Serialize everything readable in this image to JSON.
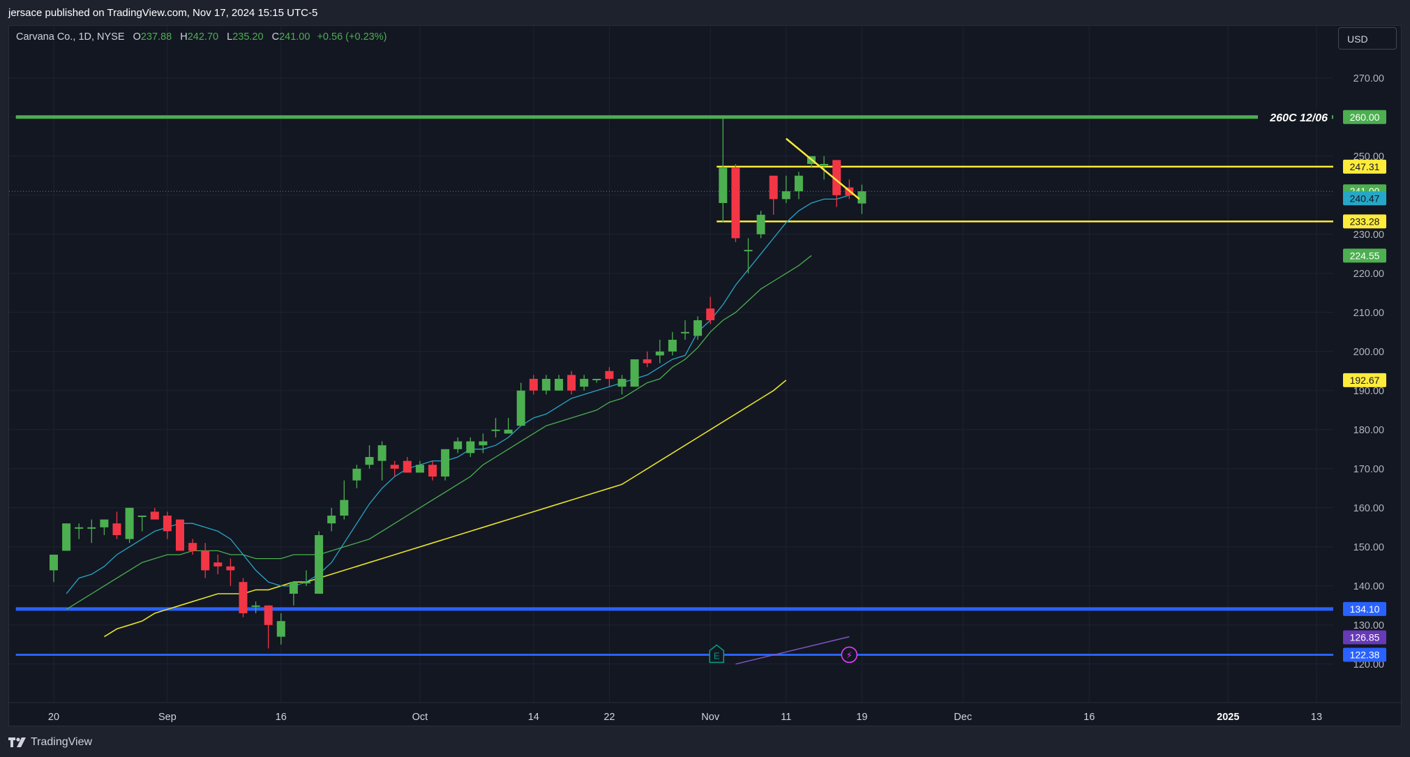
{
  "header": {
    "publish_text": "jersace published on TradingView.com, Nov 17, 2024 15:15 UTC-5"
  },
  "legend": {
    "symbol": "Carvana Co., 1D, NYSE",
    "open_label": "O",
    "open": "237.88",
    "high_label": "H",
    "high": "242.70",
    "low_label": "L",
    "low": "235.20",
    "close_label": "C",
    "close": "241.00",
    "change": "+0.56 (+0.23%)"
  },
  "currency_button": "USD",
  "footer": {
    "brand": "TradingView"
  },
  "colors": {
    "background": "#131722",
    "up": "#4caf50",
    "down": "#f23645",
    "ema_fast": "#26a7c7",
    "ema_mid": "#4caf50",
    "ema_slow": "#e8e32b",
    "hline_green": "#4caf50",
    "hline_yellow": "#ffeb3b",
    "hline_blue": "#2962ff",
    "trendline": "#ffeb3b",
    "purple_line": "#7e57c2"
  },
  "chart_data": {
    "type": "candlestick",
    "ylim": [
      118,
      278
    ],
    "y_ticks": [
      "120.00",
      "130.00",
      "140.00",
      "150.00",
      "160.00",
      "170.00",
      "180.00",
      "190.00",
      "200.00",
      "210.00",
      "220.00",
      "230.00",
      "240.00",
      "250.00",
      "260.00",
      "270.00"
    ],
    "x_ticks": [
      {
        "label": "20",
        "bar": 0
      },
      {
        "label": "Sep",
        "bar": 9
      },
      {
        "label": "16",
        "bar": 18
      },
      {
        "label": "Oct",
        "bar": 29
      },
      {
        "label": "14",
        "bar": 38
      },
      {
        "label": "22",
        "bar": 44
      },
      {
        "label": "Nov",
        "bar": 52
      },
      {
        "label": "11",
        "bar": 58
      },
      {
        "label": "19",
        "bar": 64
      },
      {
        "label": "Dec",
        "bar": 72
      },
      {
        "label": "16",
        "bar": 82
      },
      {
        "label": "2025",
        "bar": 93,
        "bold": true
      },
      {
        "label": "13",
        "bar": 100
      }
    ],
    "candles": [
      {
        "o": 144,
        "h": 148,
        "l": 141,
        "c": 148
      },
      {
        "o": 149,
        "h": 156,
        "l": 149,
        "c": 156
      },
      {
        "o": 155,
        "h": 156,
        "l": 152,
        "c": 155
      },
      {
        "o": 155,
        "h": 157,
        "l": 151,
        "c": 155
      },
      {
        "o": 155,
        "h": 157,
        "l": 153,
        "c": 157
      },
      {
        "o": 156,
        "h": 159,
        "l": 152,
        "c": 153
      },
      {
        "o": 152,
        "h": 160,
        "l": 151,
        "c": 160
      },
      {
        "o": 158,
        "h": 158,
        "l": 154,
        "c": 158
      },
      {
        "o": 159,
        "h": 160,
        "l": 157,
        "c": 157
      },
      {
        "o": 158,
        "h": 159,
        "l": 152,
        "c": 154
      },
      {
        "o": 157,
        "h": 157,
        "l": 149,
        "c": 149
      },
      {
        "o": 151,
        "h": 152,
        "l": 148,
        "c": 149
      },
      {
        "o": 149,
        "h": 151,
        "l": 142,
        "c": 144
      },
      {
        "o": 146,
        "h": 148,
        "l": 143,
        "c": 145
      },
      {
        "o": 145,
        "h": 147,
        "l": 140,
        "c": 144
      },
      {
        "o": 141,
        "h": 142,
        "l": 132,
        "c": 133
      },
      {
        "o": 135,
        "h": 136,
        "l": 133,
        "c": 135
      },
      {
        "o": 135,
        "h": 135,
        "l": 124,
        "c": 130
      },
      {
        "o": 127,
        "h": 133,
        "l": 125,
        "c": 131
      },
      {
        "o": 138,
        "h": 141,
        "l": 135,
        "c": 141
      },
      {
        "o": 141,
        "h": 144,
        "l": 140,
        "c": 141
      },
      {
        "o": 138,
        "h": 154,
        "l": 138,
        "c": 153
      },
      {
        "o": 156,
        "h": 160,
        "l": 154,
        "c": 158
      },
      {
        "o": 158,
        "h": 167,
        "l": 157,
        "c": 162
      },
      {
        "o": 167,
        "h": 171,
        "l": 165,
        "c": 170
      },
      {
        "o": 171,
        "h": 176,
        "l": 170,
        "c": 173
      },
      {
        "o": 172,
        "h": 177,
        "l": 167,
        "c": 176
      },
      {
        "o": 171,
        "h": 172,
        "l": 168,
        "c": 170
      },
      {
        "o": 172,
        "h": 173,
        "l": 169,
        "c": 169
      },
      {
        "o": 169,
        "h": 172,
        "l": 169,
        "c": 171
      },
      {
        "o": 171,
        "h": 172,
        "l": 167,
        "c": 168
      },
      {
        "o": 168,
        "h": 175,
        "l": 167,
        "c": 175
      },
      {
        "o": 175,
        "h": 178,
        "l": 174,
        "c": 177
      },
      {
        "o": 174,
        "h": 178,
        "l": 173,
        "c": 177
      },
      {
        "o": 176,
        "h": 179,
        "l": 174,
        "c": 177
      },
      {
        "o": 180,
        "h": 183,
        "l": 178,
        "c": 180
      },
      {
        "o": 179,
        "h": 183,
        "l": 179,
        "c": 180
      },
      {
        "o": 181,
        "h": 192,
        "l": 181,
        "c": 190
      },
      {
        "o": 193,
        "h": 194,
        "l": 189,
        "c": 190
      },
      {
        "o": 190,
        "h": 194,
        "l": 189,
        "c": 193
      },
      {
        "o": 190,
        "h": 194,
        "l": 190,
        "c": 193
      },
      {
        "o": 194,
        "h": 195,
        "l": 189,
        "c": 190
      },
      {
        "o": 191,
        "h": 194,
        "l": 190,
        "c": 193
      },
      {
        "o": 193,
        "h": 193,
        "l": 192,
        "c": 193
      },
      {
        "o": 195,
        "h": 196,
        "l": 191,
        "c": 193
      },
      {
        "o": 191,
        "h": 194,
        "l": 189,
        "c": 193
      },
      {
        "o": 191,
        "h": 198,
        "l": 191,
        "c": 198
      },
      {
        "o": 198,
        "h": 200,
        "l": 196,
        "c": 197
      },
      {
        "o": 199,
        "h": 203,
        "l": 197,
        "c": 200
      },
      {
        "o": 200,
        "h": 205,
        "l": 199,
        "c": 203
      },
      {
        "o": 205,
        "h": 208,
        "l": 203,
        "c": 205
      },
      {
        "o": 204,
        "h": 209,
        "l": 203,
        "c": 208
      },
      {
        "o": 211,
        "h": 214,
        "l": 207,
        "c": 208
      },
      {
        "o": 238,
        "h": 260,
        "l": 233,
        "c": 247
      },
      {
        "o": 247,
        "h": 248,
        "l": 228,
        "c": 229
      },
      {
        "o": 226,
        "h": 229,
        "l": 220,
        "c": 226
      },
      {
        "o": 230,
        "h": 236,
        "l": 229,
        "c": 235
      },
      {
        "o": 245,
        "h": 245,
        "l": 235,
        "c": 239
      },
      {
        "o": 239,
        "h": 245,
        "l": 238,
        "c": 241
      },
      {
        "o": 241,
        "h": 246,
        "l": 239,
        "c": 245
      },
      {
        "o": 248,
        "h": 250,
        "l": 247,
        "c": 250
      },
      {
        "o": 248,
        "h": 250,
        "l": 244,
        "c": 248
      },
      {
        "o": 249,
        "h": 249,
        "l": 237,
        "c": 240
      },
      {
        "o": 242,
        "h": 244,
        "l": 239,
        "c": 240
      },
      {
        "o": 237.88,
        "h": 242.7,
        "l": 235.2,
        "c": 241.0
      }
    ],
    "ema_fast": [
      138,
      142,
      143,
      145,
      148,
      150,
      152,
      154,
      155,
      156,
      156,
      155,
      154,
      152,
      148,
      144,
      141,
      140,
      140,
      141,
      143,
      146,
      151,
      156,
      161,
      165,
      168,
      170,
      171,
      172,
      172,
      173,
      175,
      175,
      176,
      178,
      181,
      183,
      184,
      186,
      188,
      189,
      190,
      191,
      192,
      193,
      194,
      196,
      198,
      199,
      205,
      208,
      212,
      217,
      221,
      225,
      229,
      233,
      236,
      238,
      239,
      239,
      240
    ],
    "ema_mid": [
      134,
      136,
      138,
      140,
      142,
      144,
      146,
      147,
      148,
      148,
      149,
      149,
      149,
      148,
      148,
      147,
      147,
      147,
      148,
      148,
      148,
      149,
      150,
      151,
      152,
      154,
      156,
      158,
      160,
      162,
      164,
      166,
      168,
      171,
      173,
      175,
      177,
      179,
      181,
      182,
      183,
      184,
      185,
      187,
      188,
      190,
      192,
      193,
      196,
      198,
      201,
      205,
      208,
      210,
      213,
      216,
      218,
      220,
      222,
      224.55
    ],
    "ema_slow": [
      127,
      129,
      130,
      131,
      133,
      134,
      135,
      136,
      137,
      138,
      138,
      138,
      139,
      139,
      140,
      141,
      141,
      142,
      143,
      144,
      145,
      146,
      147,
      148,
      149,
      150,
      151,
      152,
      153,
      154,
      155,
      156,
      157,
      158,
      159,
      160,
      161,
      162,
      163,
      164,
      165,
      166,
      168,
      170,
      172,
      174,
      176,
      178,
      180,
      182,
      184,
      186,
      188,
      190,
      192.67
    ],
    "ema_mid_start": 1,
    "ema_slow_start": 4,
    "horizontal_lines": [
      {
        "price": 260.0,
        "color": "#4caf50",
        "label": "260C 12/06",
        "from_bar": -3
      },
      {
        "price": 247.31,
        "color": "#ffeb3b",
        "from_bar": 52.5
      },
      {
        "price": 233.28,
        "color": "#ffeb3b",
        "from_bar": 52.5
      },
      {
        "price": 134.1,
        "color": "#2962ff",
        "from_bar": -3
      },
      {
        "price": 122.38,
        "color": "#2962ff",
        "from_bar": -3
      }
    ],
    "trendline": {
      "x1": 58,
      "y1": 254.5,
      "x2": 63.8,
      "y2": 239
    },
    "purple_line": {
      "x1": 54,
      "y1": 120,
      "x2": 63,
      "y2": 127
    },
    "price_labels": [
      {
        "text": "260.00",
        "price": 260.0,
        "bg": "#4caf50",
        "fg": "#ffffff"
      },
      {
        "text": "247.31",
        "price": 247.31,
        "bg": "#ffeb3b",
        "fg": "#131722"
      },
      {
        "text": "241.00",
        "price": 241.0,
        "bg": "#4caf50",
        "fg": "#ffffff"
      },
      {
        "text": "240.47",
        "price": 239.2,
        "bg": "#26a7c7",
        "fg": "#131722"
      },
      {
        "text": "233.28",
        "price": 233.28,
        "bg": "#ffeb3b",
        "fg": "#131722"
      },
      {
        "text": "224.55",
        "price": 224.55,
        "bg": "#4caf50",
        "fg": "#ffffff"
      },
      {
        "text": "192.67",
        "price": 192.67,
        "bg": "#ffeb3b",
        "fg": "#131722"
      },
      {
        "text": "134.10",
        "price": 134.1,
        "bg": "#2962ff",
        "fg": "#ffffff"
      },
      {
        "text": "126.85",
        "price": 126.85,
        "bg": "#673ab7",
        "fg": "#ffffff"
      },
      {
        "text": "122.38",
        "price": 122.38,
        "bg": "#2962ff",
        "fg": "#ffffff"
      }
    ],
    "events": [
      {
        "icon": "earnings-icon",
        "bar": 52.5,
        "glyph": "E"
      },
      {
        "icon": "lightning-icon",
        "bar": 63,
        "glyph": "⚡"
      }
    ],
    "last_close": 241.0
  }
}
